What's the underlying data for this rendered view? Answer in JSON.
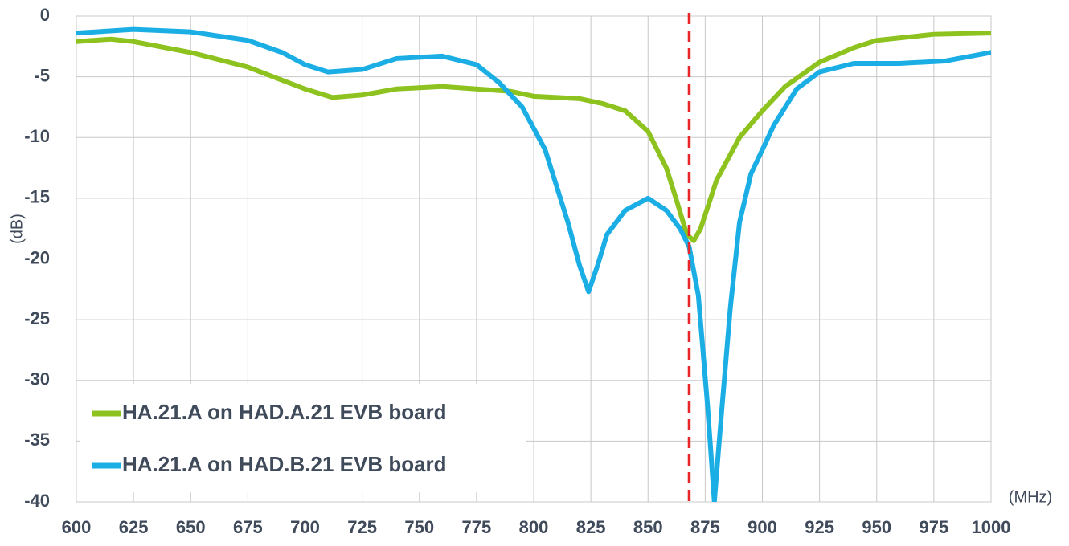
{
  "chart_data": {
    "type": "line",
    "ylabel": "(dB)",
    "xlabel": "(MHz)",
    "xlim": [
      600,
      1000
    ],
    "xticks": [
      600,
      625,
      650,
      675,
      700,
      725,
      750,
      775,
      800,
      825,
      850,
      875,
      900,
      925,
      950,
      975,
      1000
    ],
    "ylim": [
      -40,
      0
    ],
    "yticks": [
      0,
      -5,
      -10,
      -15,
      -20,
      -25,
      -30,
      -35,
      -40
    ],
    "grid": true,
    "legend": "lower left",
    "vline": {
      "x": 868,
      "color": "#e8262a"
    },
    "series": [
      {
        "name": "HA.21.A on HAD.A.21 EVB board",
        "color": "#8dc21f",
        "x": [
          600,
          615,
          625,
          650,
          675,
          700,
          712,
          725,
          740,
          760,
          775,
          790,
          800,
          810,
          820,
          830,
          840,
          850,
          858,
          863,
          867,
          870,
          873,
          880,
          890,
          900,
          910,
          925,
          940,
          950,
          975,
          1000
        ],
        "values": [
          -2.1,
          -1.9,
          -2.1,
          -3.0,
          -4.2,
          -6.0,
          -6.7,
          -6.5,
          -6.0,
          -5.8,
          -6.0,
          -6.2,
          -6.6,
          -6.7,
          -6.8,
          -7.2,
          -7.8,
          -9.5,
          -12.5,
          -15.5,
          -18.0,
          -18.5,
          -17.5,
          -13.5,
          -10.0,
          -7.8,
          -5.8,
          -3.8,
          -2.6,
          -2.0,
          -1.5,
          -1.4
        ]
      },
      {
        "name": "HA.21.A on HAD.B.21 EVB board",
        "color": "#1aaee5",
        "x": [
          600,
          625,
          650,
          675,
          690,
          700,
          710,
          725,
          740,
          760,
          775,
          785,
          795,
          805,
          815,
          820,
          824,
          828,
          832,
          840,
          850,
          858,
          864,
          868,
          872,
          876,
          879,
          882,
          886,
          890,
          895,
          905,
          915,
          925,
          940,
          960,
          980,
          1000
        ],
        "values": [
          -1.4,
          -1.1,
          -1.3,
          -2.0,
          -3.0,
          -4.0,
          -4.6,
          -4.4,
          -3.5,
          -3.3,
          -4.0,
          -5.5,
          -7.5,
          -11,
          -17,
          -20.5,
          -22.7,
          -20.5,
          -18,
          -16,
          -15,
          -16,
          -17.5,
          -19,
          -23,
          -32,
          -40,
          -33,
          -24,
          -17,
          -13,
          -9,
          -6,
          -4.6,
          -3.9,
          -3.9,
          -3.7,
          -3.0
        ]
      }
    ]
  }
}
